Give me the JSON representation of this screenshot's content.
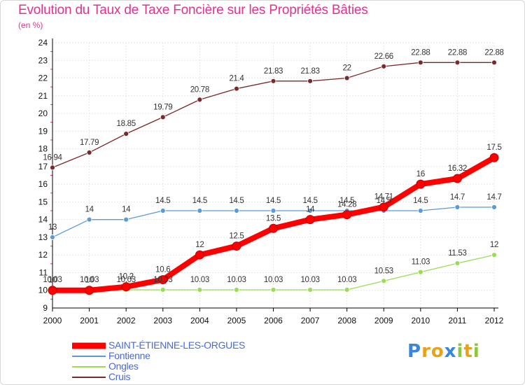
{
  "title": "Evolution du Taux de Taxe Foncière sur les Propriétés Bâties",
  "subtitle": "(en %)",
  "logo": {
    "letters": [
      {
        "ch": "P",
        "color": "#3b86d8"
      },
      {
        "ch": "r",
        "color": "#e8a21a"
      },
      {
        "ch": "o",
        "color": "#e8a21a"
      },
      {
        "ch": "x",
        "color": "#3b86d8"
      },
      {
        "ch": "i",
        "color": "#8cc63f"
      },
      {
        "ch": "t",
        "color": "#e8a21a"
      },
      {
        "ch": "i",
        "color": "#8cc63f"
      }
    ]
  },
  "chart_data": {
    "type": "line",
    "title": "Evolution du Taux de Taxe Foncière sur les Propriétés Bâties",
    "ylabel": "(en %)",
    "xlabel": "",
    "x": [
      "2000",
      "2001",
      "2002",
      "2003",
      "2004",
      "2005",
      "2006",
      "2007",
      "2008",
      "2009",
      "2010",
      "2011",
      "2012"
    ],
    "ylim": [
      9,
      24
    ],
    "yticks": [
      9,
      10,
      11,
      12,
      13,
      14,
      15,
      16,
      17,
      18,
      19,
      20,
      21,
      22,
      23,
      24
    ],
    "grid": true,
    "legend_position": "bottom-left",
    "series": [
      {
        "name": "SAINT-ÉTIENNE-LES-ORGUES",
        "color": "#ff0000",
        "values": [
          10,
          10,
          10.2,
          10.6,
          12,
          12.5,
          13.5,
          14,
          14.28,
          14.71,
          16,
          16.32,
          17.5
        ],
        "labels": [
          "10",
          "10",
          "10.2",
          "10.6",
          "12",
          "12.5",
          "13.5",
          "14",
          "14.28",
          "14.71",
          "16",
          "16.32",
          "17.5"
        ]
      },
      {
        "name": "Fontienne",
        "color": "#5b9bd5",
        "values": [
          13,
          14,
          14,
          14.5,
          14.5,
          14.5,
          14.5,
          14.5,
          14.5,
          14.5,
          14.5,
          14.7,
          14.7
        ],
        "labels": [
          "13",
          "14",
          "14",
          "14.5",
          "14.5",
          "14.5",
          "14.5",
          "14.5",
          "14.5",
          "14.5",
          "14.5",
          "14.7",
          "14.7"
        ]
      },
      {
        "name": "Ongles",
        "color": "#99dd55",
        "values": [
          10.03,
          10.03,
          10.03,
          10.03,
          10.03,
          10.03,
          10.03,
          10.03,
          10.03,
          10.53,
          11.03,
          11.53,
          12
        ],
        "labels": [
          "10.03",
          "10.03",
          "10.03",
          "10.03",
          "10.03",
          "10.03",
          "10.03",
          "10.03",
          "10.03",
          "10.53",
          "11.03",
          "11.53",
          "12"
        ]
      },
      {
        "name": "Cruis",
        "color": "#7a2a2a",
        "values": [
          16.94,
          17.79,
          18.85,
          19.79,
          20.78,
          21.4,
          21.83,
          21.83,
          22,
          22.66,
          22.88,
          22.88,
          22.88
        ],
        "labels": [
          "16.94",
          "17.79",
          "18.85",
          "19.79",
          "20.78",
          "21.4",
          "21.83",
          "21.83",
          "22",
          "22.66",
          "22.88",
          "22.88",
          "22.88"
        ]
      }
    ]
  }
}
